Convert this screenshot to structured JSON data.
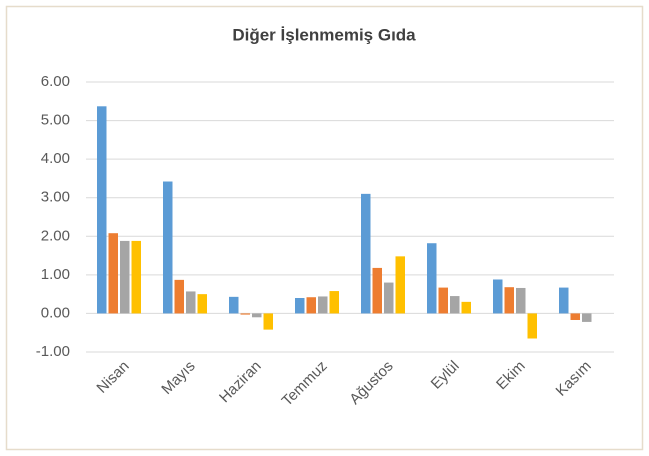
{
  "chart_data": {
    "type": "bar",
    "title": "Diğer İşlenmemiş Gıda",
    "categories": [
      "Nisan",
      "Mayıs",
      "Haziran",
      "Temmuz",
      "Ağustos",
      "Eylül",
      "Ekim",
      "Kasım"
    ],
    "series": [
      {
        "color": "#5b9bd5",
        "values": [
          5.37,
          3.42,
          0.43,
          0.4,
          3.1,
          1.82,
          0.88,
          0.67
        ]
      },
      {
        "color": "#ed7d31",
        "values": [
          2.08,
          0.87,
          -0.03,
          0.42,
          1.18,
          0.67,
          0.68,
          -0.17
        ]
      },
      {
        "color": "#a5a5a5",
        "values": [
          1.88,
          0.57,
          -0.1,
          0.44,
          0.8,
          0.45,
          0.66,
          -0.22
        ]
      },
      {
        "color": "#ffc000",
        "values": [
          1.88,
          0.5,
          -0.42,
          0.58,
          1.48,
          0.3,
          -0.65,
          null
        ]
      }
    ],
    "ylim": [
      -1,
      6
    ],
    "yticks": [
      {
        "value": -1,
        "label": "-1.00"
      },
      {
        "value": 0,
        "label": "0.00"
      },
      {
        "value": 1,
        "label": "1.00"
      },
      {
        "value": 2,
        "label": "2.00"
      },
      {
        "value": 3,
        "label": "3.00"
      },
      {
        "value": 4,
        "label": "4.00"
      },
      {
        "value": 5,
        "label": "5.00"
      },
      {
        "value": 6,
        "label": "6.00"
      }
    ],
    "grid": true
  }
}
